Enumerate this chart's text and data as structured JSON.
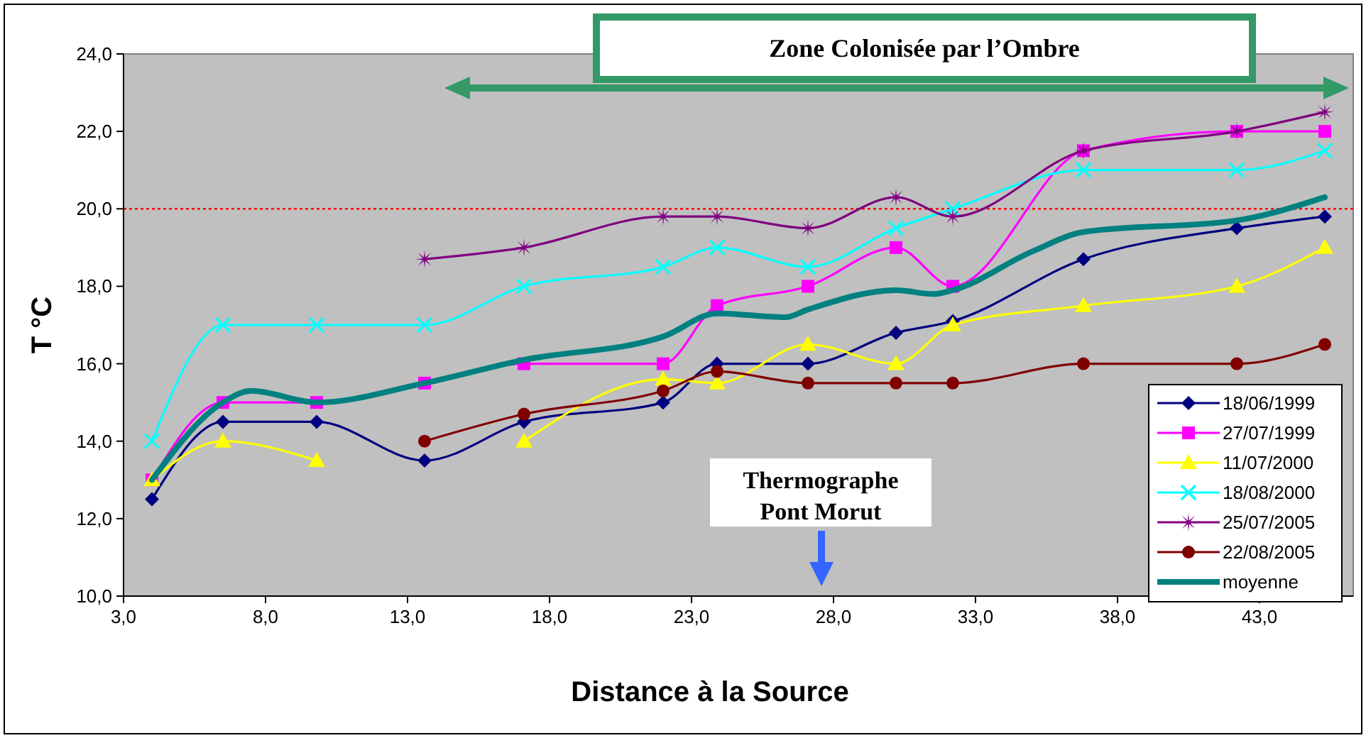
{
  "chart_data": {
    "type": "line",
    "xlabel": "Distance à la Source",
    "ylabel": "T °C",
    "x": [
      4.0,
      6.5,
      9.8,
      13.6,
      17.1,
      22.0,
      23.9,
      27.1,
      30.2,
      32.2,
      36.8,
      42.2,
      45.3
    ],
    "series": [
      {
        "name": "18/06/1999",
        "color": "#000080",
        "marker": "diamond",
        "values": [
          12.5,
          14.5,
          14.5,
          13.5,
          14.5,
          15.0,
          16.0,
          16.0,
          16.8,
          17.1,
          18.7,
          19.5,
          19.8
        ]
      },
      {
        "name": "27/07/1999",
        "color": "#ff00ff",
        "marker": "square",
        "values": [
          13.0,
          15.0,
          15.0,
          15.5,
          16.0,
          16.0,
          17.5,
          18.0,
          19.0,
          18.0,
          21.5,
          22.0,
          22.0
        ]
      },
      {
        "name": "11/07/2000",
        "color": "#ffff00",
        "marker": "triangle",
        "values": [
          13.0,
          14.0,
          13.5,
          null,
          14.0,
          15.6,
          15.5,
          16.5,
          16.0,
          17.0,
          17.5,
          18.0,
          19.0
        ]
      },
      {
        "name": "18/08/2000",
        "color": "#00ffff",
        "marker": "cross",
        "values": [
          14.0,
          17.0,
          17.0,
          17.0,
          18.0,
          18.5,
          19.0,
          18.5,
          19.5,
          20.0,
          21.0,
          21.0,
          21.5
        ]
      },
      {
        "name": "25/07/2005",
        "color": "#800080",
        "marker": "star",
        "values": [
          null,
          null,
          null,
          18.7,
          19.0,
          19.8,
          19.8,
          19.5,
          20.3,
          19.8,
          21.5,
          22.0,
          22.5
        ]
      },
      {
        "name": "22/08/2005",
        "color": "#800000",
        "marker": "circle",
        "values": [
          null,
          null,
          null,
          14.0,
          14.7,
          15.3,
          15.8,
          15.5,
          15.5,
          15.5,
          16.0,
          16.0,
          16.5
        ]
      },
      {
        "name": "moyenne",
        "color": "#008080",
        "marker": "none",
        "x": [
          4.0,
          6.5,
          7.5,
          9.8,
          13.6,
          17.1,
          22.0,
          23.9,
          26.3,
          27.1,
          30.2,
          31.5,
          32.2,
          35.0,
          36.8,
          42.2,
          45.3
        ],
        "values": [
          13.0,
          15.0,
          15.3,
          15.0,
          15.5,
          16.1,
          16.7,
          17.3,
          17.2,
          17.4,
          17.9,
          17.8,
          17.9,
          18.9,
          19.4,
          19.7,
          20.3
        ]
      }
    ],
    "xlim": [
      3,
      46.3
    ],
    "xticks": [
      {
        "value": 3,
        "label": "3,0"
      },
      {
        "value": 8,
        "label": "8,0"
      },
      {
        "value": 13,
        "label": "13,0"
      },
      {
        "value": 18,
        "label": "18,0"
      },
      {
        "value": 23,
        "label": "23,0"
      },
      {
        "value": 28,
        "label": "28,0"
      },
      {
        "value": 33,
        "label": "33,0"
      },
      {
        "value": 38,
        "label": "38,0"
      },
      {
        "value": 43,
        "label": "43,0"
      }
    ],
    "ylim": [
      10,
      24
    ],
    "yticks": [
      {
        "value": 10,
        "label": "10,0"
      },
      {
        "value": 12,
        "label": "12,0"
      },
      {
        "value": 14,
        "label": "14,0"
      },
      {
        "value": 16,
        "label": "16,0"
      },
      {
        "value": 18,
        "label": "18,0"
      },
      {
        "value": 20,
        "label": "20,0"
      },
      {
        "value": 22,
        "label": "22,0"
      },
      {
        "value": 24,
        "label": "24,0"
      }
    ],
    "ref_lines": [
      {
        "axis": "y",
        "value": 20,
        "color": "#ff0000",
        "line_style": "dotted"
      }
    ],
    "annotations": [
      "Zone Colonisée par l’Ombre",
      "Thermographe Pont Morut"
    ],
    "legend": "bottom right",
    "grid": false,
    "line_style": "solid"
  }
}
